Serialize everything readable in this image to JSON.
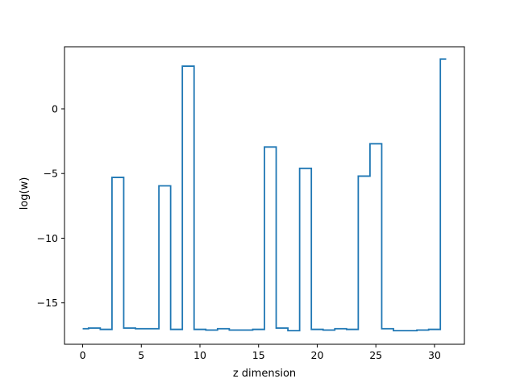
{
  "chart_data": {
    "type": "line",
    "drawstyle": "steps-mid",
    "title": "",
    "xlabel": "z dimension",
    "ylabel": "log(w)",
    "xlim": [
      -1.55,
      32.55
    ],
    "ylim": [
      -18.2,
      4.8
    ],
    "xticks": [
      0,
      5,
      10,
      15,
      20,
      25,
      30
    ],
    "xtick_labels": [
      "0",
      "5",
      "10",
      "15",
      "20",
      "25",
      "30"
    ],
    "yticks": [
      -15,
      -10,
      -5,
      0
    ],
    "ytick_labels": [
      "−15",
      "−10",
      "−5",
      "0"
    ],
    "grid": false,
    "line_color": "#1f77b4",
    "series": [
      {
        "x": [
          0,
          1,
          2,
          3,
          4,
          5,
          6,
          7,
          8,
          9,
          10,
          11,
          12,
          13,
          14,
          15,
          16,
          17,
          18,
          19,
          20,
          21,
          22,
          23,
          24,
          25,
          26,
          27,
          28,
          29,
          30,
          31
        ],
        "values": [
          -17.0,
          -16.95,
          -17.05,
          -5.3,
          -16.95,
          -17.0,
          -17.0,
          -5.95,
          -17.05,
          3.3,
          -17.05,
          -17.1,
          -17.0,
          -17.1,
          -17.1,
          -17.05,
          -2.95,
          -16.95,
          -17.15,
          -4.6,
          -17.05,
          -17.1,
          -17.0,
          -17.05,
          -5.2,
          -2.7,
          -17.0,
          -17.15,
          -17.15,
          -17.1,
          -17.05,
          3.85
        ]
      }
    ]
  }
}
